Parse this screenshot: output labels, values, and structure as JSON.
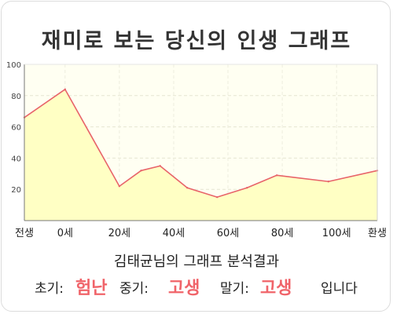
{
  "title": "재미로 보는 당신의 인생 그래프",
  "analysis_title": "김태균님의 그래프 분석결과",
  "result": {
    "early_label": "초기:",
    "early_value": "험난",
    "middle_label": "중기:",
    "middle_value": "고생",
    "late_label": "말기:",
    "late_value": "고생",
    "ending": "입니다"
  },
  "colors": {
    "line": "#e8646a",
    "fill": "#ffffc4",
    "plot_background": "#fffff2",
    "highlight": "#f0646a"
  },
  "chart_data": {
    "type": "area",
    "title": "",
    "xlabel": "",
    "ylabel": "",
    "x_tick_labels": [
      "전생",
      "0세",
      "20세",
      "40세",
      "60세",
      "80세",
      "100세",
      "환생"
    ],
    "y_ticks": [
      20,
      40,
      60,
      80,
      100
    ],
    "ylim": [
      0,
      100
    ],
    "grid": true,
    "series": [
      {
        "points": [
          {
            "x": -15,
            "y": 66
          },
          {
            "x": 0,
            "y": 84
          },
          {
            "x": 20,
            "y": 22
          },
          {
            "x": 28,
            "y": 32
          },
          {
            "x": 35,
            "y": 35
          },
          {
            "x": 45,
            "y": 21
          },
          {
            "x": 56,
            "y": 15
          },
          {
            "x": 67,
            "y": 21
          },
          {
            "x": 78,
            "y": 29
          },
          {
            "x": 97,
            "y": 25
          },
          {
            "x": 115,
            "y": 32
          }
        ]
      }
    ]
  }
}
